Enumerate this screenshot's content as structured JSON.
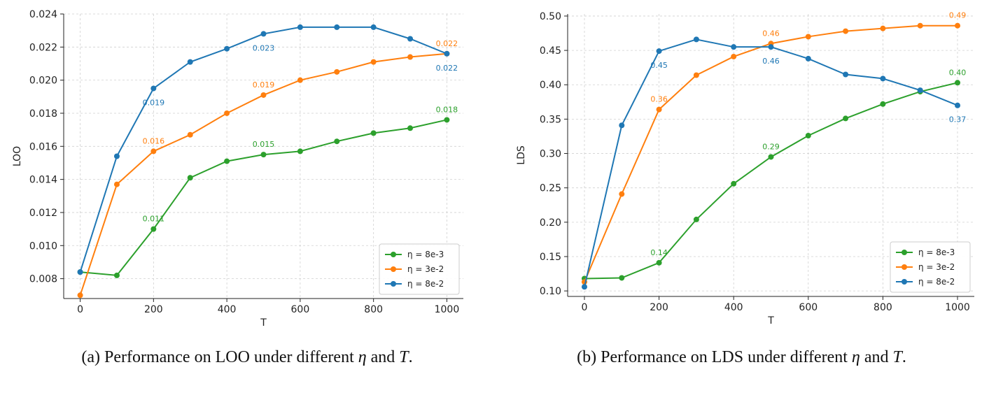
{
  "chart_data": [
    {
      "id": "a",
      "type": "line",
      "title": "",
      "xlabel": "T",
      "ylabel": "LOO",
      "x": [
        0,
        100,
        200,
        300,
        400,
        500,
        600,
        700,
        800,
        900,
        1000
      ],
      "xlim": [
        -45,
        1045
      ],
      "ylim": [
        0.0068,
        0.024
      ],
      "xticks": [
        "0",
        "200",
        "400",
        "600",
        "800",
        "1000"
      ],
      "xtick_values": [
        0,
        200,
        400,
        600,
        800,
        1000
      ],
      "yticks": [
        "0.008",
        "0.010",
        "0.012",
        "0.014",
        "0.016",
        "0.018",
        "0.020",
        "0.022",
        "0.024"
      ],
      "ytick_values": [
        0.008,
        0.01,
        0.012,
        0.014,
        0.016,
        0.018,
        0.02,
        0.022,
        0.024
      ],
      "grid": true,
      "legend_position": "bottom-right",
      "series": [
        {
          "name": "η = 8e-3",
          "color": "#2ca02c",
          "values": [
            0.0084,
            0.0082,
            0.011,
            0.0141,
            0.0151,
            0.0155,
            0.0157,
            0.0163,
            0.0168,
            0.0171,
            0.0176
          ]
        },
        {
          "name": "η = 3e-2",
          "color": "#ff7f0e",
          "values": [
            0.007,
            0.0137,
            0.0157,
            0.0167,
            0.018,
            0.0191,
            0.02,
            0.0205,
            0.0211,
            0.0214,
            0.0216
          ]
        },
        {
          "name": "η = 8e-2",
          "color": "#1f77b4",
          "values": [
            0.0084,
            0.0154,
            0.0195,
            0.0211,
            0.0219,
            0.0228,
            0.0232,
            0.0232,
            0.0232,
            0.0225,
            0.0216
          ]
        }
      ],
      "annotations": [
        {
          "series": 0,
          "x": 200,
          "text": "0.011",
          "dir": "above"
        },
        {
          "series": 0,
          "x": 500,
          "text": "0.015",
          "dir": "above"
        },
        {
          "series": 0,
          "x": 1000,
          "text": "0.018",
          "dir": "above"
        },
        {
          "series": 1,
          "x": 200,
          "text": "0.016",
          "dir": "above"
        },
        {
          "series": 1,
          "x": 500,
          "text": "0.019",
          "dir": "above"
        },
        {
          "series": 1,
          "x": 1000,
          "text": "0.022",
          "dir": "above"
        },
        {
          "series": 2,
          "x": 200,
          "text": "0.019",
          "dir": "below"
        },
        {
          "series": 2,
          "x": 500,
          "text": "0.023",
          "dir": "below"
        },
        {
          "series": 2,
          "x": 1000,
          "text": "0.022",
          "dir": "below"
        }
      ]
    },
    {
      "id": "b",
      "type": "line",
      "title": "",
      "xlabel": "T",
      "ylabel": "LDS",
      "x": [
        0,
        100,
        200,
        300,
        400,
        500,
        600,
        700,
        800,
        900,
        1000
      ],
      "xlim": [
        -45,
        1045
      ],
      "ylim": [
        0.092,
        0.503
      ],
      "xticks": [
        "0",
        "200",
        "400",
        "600",
        "800",
        "1000"
      ],
      "xtick_values": [
        0,
        200,
        400,
        600,
        800,
        1000
      ],
      "yticks": [
        "0.10",
        "0.15",
        "0.20",
        "0.25",
        "0.30",
        "0.35",
        "0.40",
        "0.45",
        "0.50"
      ],
      "ytick_values": [
        0.1,
        0.15,
        0.2,
        0.25,
        0.3,
        0.35,
        0.4,
        0.45,
        0.5
      ],
      "grid": true,
      "legend_position": "bottom-right",
      "series": [
        {
          "name": "η = 8e-3",
          "color": "#2ca02c",
          "values": [
            0.118,
            0.119,
            0.141,
            0.204,
            0.256,
            0.295,
            0.326,
            0.351,
            0.372,
            0.39,
            0.403
          ]
        },
        {
          "name": "η = 3e-2",
          "color": "#ff7f0e",
          "values": [
            0.113,
            0.241,
            0.364,
            0.414,
            0.441,
            0.46,
            0.47,
            0.478,
            0.482,
            0.486,
            0.486
          ]
        },
        {
          "name": "η = 8e-2",
          "color": "#1f77b4",
          "values": [
            0.106,
            0.341,
            0.449,
            0.466,
            0.455,
            0.455,
            0.438,
            0.415,
            0.409,
            0.392,
            0.37
          ]
        }
      ],
      "annotations": [
        {
          "series": 0,
          "x": 200,
          "text": "0.14",
          "dir": "above"
        },
        {
          "series": 0,
          "x": 500,
          "text": "0.29",
          "dir": "above"
        },
        {
          "series": 0,
          "x": 1000,
          "text": "0.40",
          "dir": "above"
        },
        {
          "series": 1,
          "x": 200,
          "text": "0.36",
          "dir": "above"
        },
        {
          "series": 1,
          "x": 500,
          "text": "0.46",
          "dir": "above"
        },
        {
          "series": 1,
          "x": 1000,
          "text": "0.49",
          "dir": "above"
        },
        {
          "series": 2,
          "x": 200,
          "text": "0.45",
          "dir": "below"
        },
        {
          "series": 2,
          "x": 500,
          "text": "0.46",
          "dir": "below"
        },
        {
          "series": 2,
          "x": 1000,
          "text": "0.37",
          "dir": "below"
        }
      ]
    }
  ],
  "captions": {
    "a": {
      "prefix": "(a) Performance on LOO under different ",
      "eta": "η",
      "mid": " and ",
      "t": "T",
      "suffix": "."
    },
    "b": {
      "prefix": "(b) Performance on LDS under different ",
      "eta": "η",
      "mid": " and ",
      "t": "T",
      "suffix": "."
    }
  }
}
